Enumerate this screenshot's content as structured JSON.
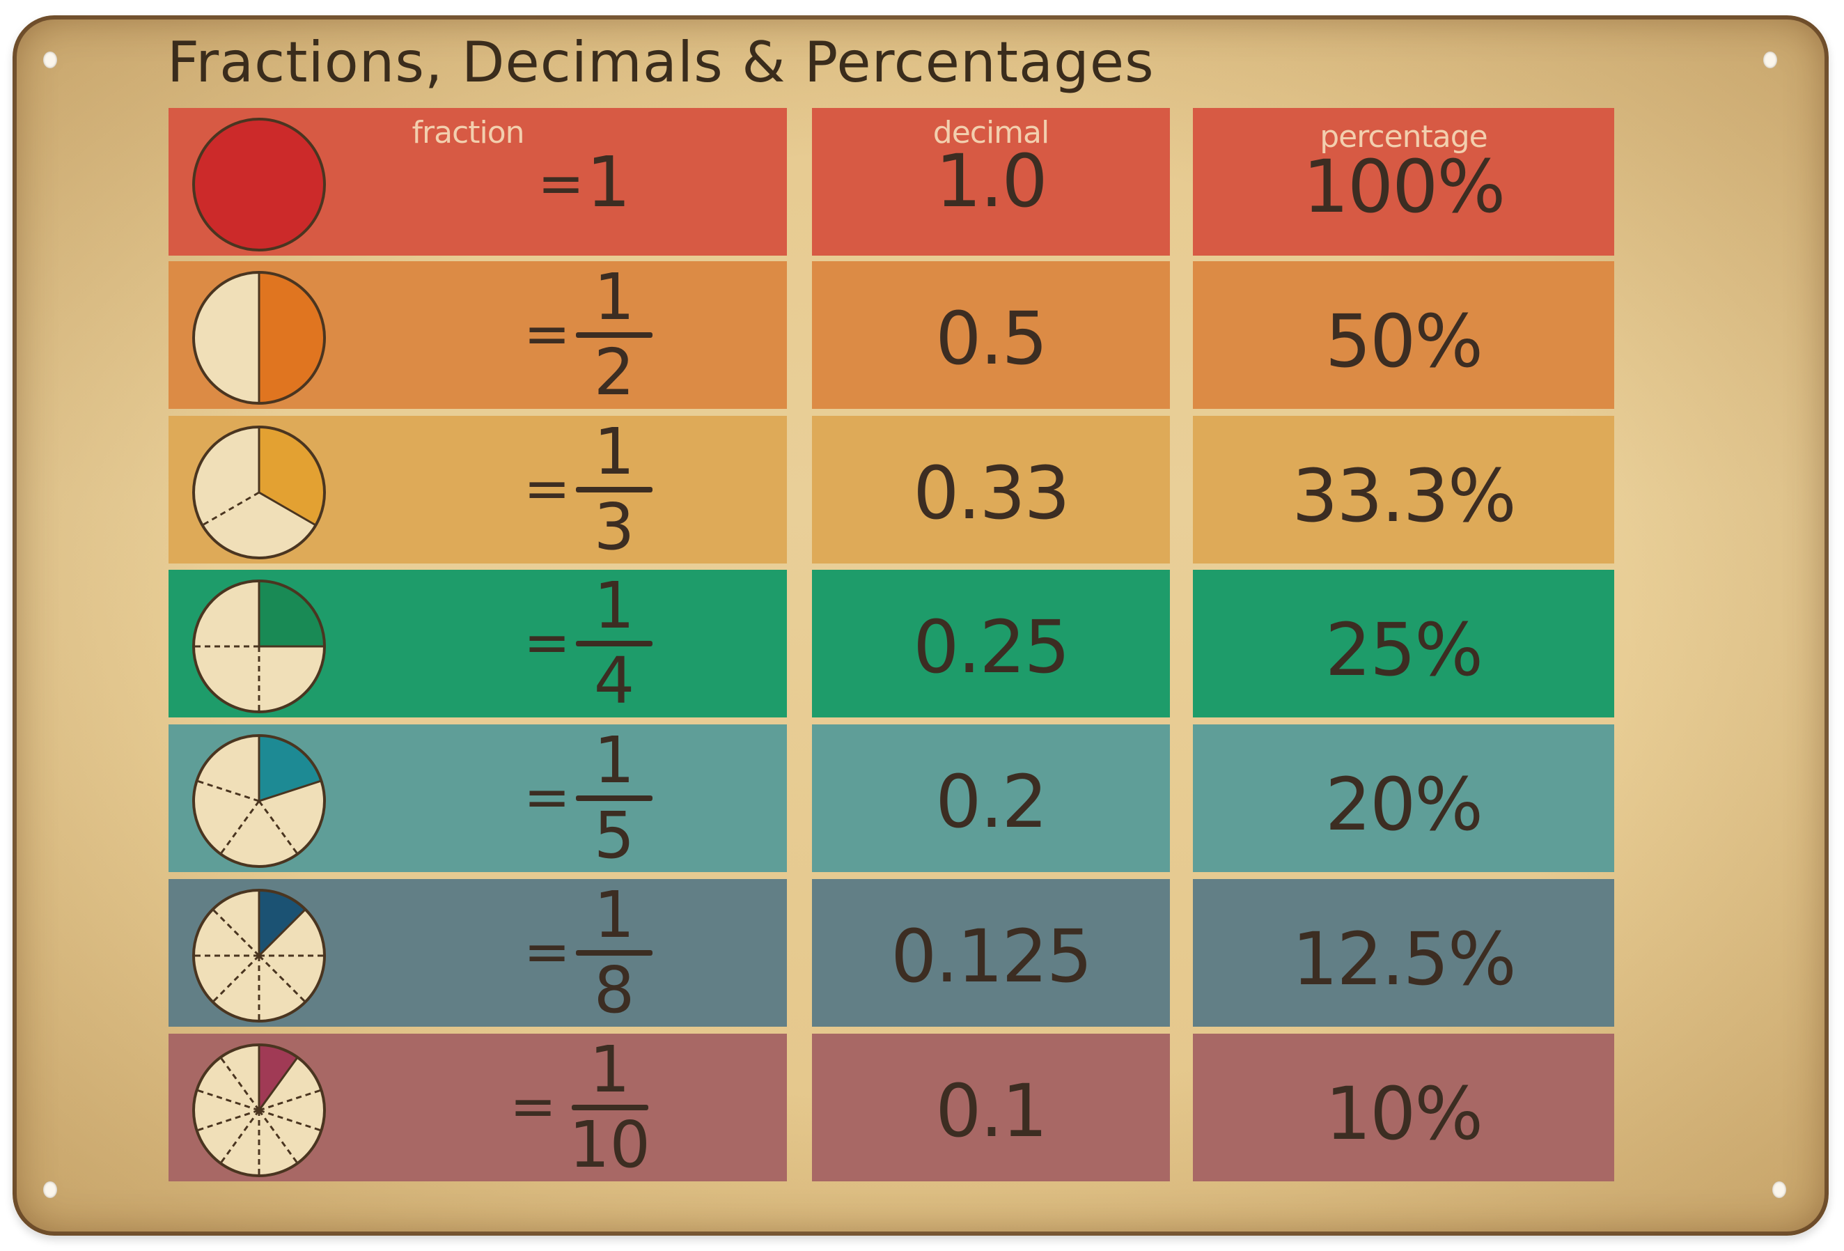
{
  "title": "Fractions, Decimals & Percentages",
  "headers": {
    "fraction": "fraction",
    "decimal": "decimal",
    "percentage": "percentage"
  },
  "rows": [
    {
      "fraction_whole": "1",
      "numerator": "",
      "denominator": "",
      "equals": "=",
      "decimal": "1.0",
      "percentage": "100%",
      "slices": 1,
      "bg": "#d75a44",
      "accent": "#cc2a2a"
    },
    {
      "numerator": "1",
      "denominator": "2",
      "equals": "=",
      "decimal": "0.5",
      "percentage": "50%",
      "slices": 2,
      "bg": "#dc8b45",
      "accent": "#e07520"
    },
    {
      "numerator": "1",
      "denominator": "3",
      "equals": "=",
      "decimal": "0.33",
      "percentage": "33.3%",
      "slices": 3,
      "bg": "#deaa58",
      "accent": "#e3a132"
    },
    {
      "numerator": "1",
      "denominator": "4",
      "equals": "=",
      "decimal": "0.25",
      "percentage": "25%",
      "slices": 4,
      "bg": "#1e9c6a",
      "accent": "#198a55"
    },
    {
      "numerator": "1",
      "denominator": "5",
      "equals": "=",
      "decimal": "0.2",
      "percentage": "20%",
      "slices": 5,
      "bg": "#5f9e98",
      "accent": "#1d8a94"
    },
    {
      "numerator": "1",
      "denominator": "8",
      "equals": "=",
      "decimal": "0.125",
      "percentage": "12.5%",
      "slices": 8,
      "bg": "#627f86",
      "accent": "#1b5273"
    },
    {
      "numerator": "1",
      "denominator": "10",
      "equals": "=",
      "decimal": "0.1",
      "percentage": "10%",
      "slices": 10,
      "bg": "#a86865",
      "accent": "#a03a55"
    }
  ],
  "colors": {
    "sign": "#e6c98f",
    "text": "#3c2d22",
    "pie_empty": "#f0dfb8",
    "header_text": "#f2cfae"
  }
}
